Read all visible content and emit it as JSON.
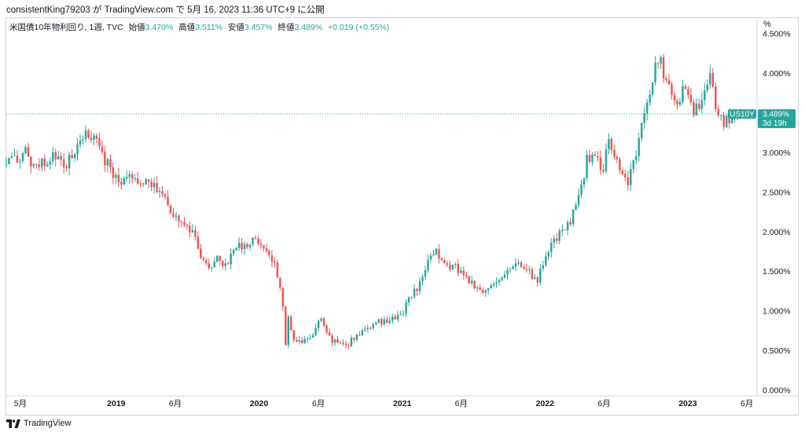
{
  "header": {
    "user": "consistentKing79203",
    "ga": "が",
    "site": "TradingView.com",
    "de": "で",
    "timestamp": "5月 16, 2023 11:36 UTC+9",
    "published": "に公開"
  },
  "legend": {
    "symbol": "米国債10年物利回り, 1週, TVC",
    "open_label": "始値",
    "open_value": "3.470%",
    "high_label": "高値",
    "high_value": "3.511%",
    "low_label": "安値",
    "low_value": "3.457%",
    "close_label": "終値",
    "close_value": "3.489%",
    "change": "+0.019 (+0.55%)"
  },
  "footer": {
    "brand": "TradingView",
    "logo_icon": "tradingview-logo-icon"
  },
  "colors": {
    "up": "#26a69a",
    "down": "#ef5350",
    "price_line": "#26a69a",
    "axis_text": "#131722",
    "border": "#d1d4dc"
  },
  "chart_data": {
    "type": "candlestick",
    "interval": "1 week",
    "y_unit": "%",
    "ylim": [
      -0.05,
      4.7
    ],
    "y_ticks": [
      {
        "value": 4.5,
        "label": "4.500%"
      },
      {
        "value": 4.0,
        "label": "4.000%"
      },
      {
        "value": 3.5,
        "label": "3.500%"
      },
      {
        "value": 3.0,
        "label": "3.000%"
      },
      {
        "value": 2.5,
        "label": "2.500%"
      },
      {
        "value": 2.0,
        "label": "2.000%"
      },
      {
        "value": 1.5,
        "label": "1.500%"
      },
      {
        "value": 1.0,
        "label": "1.000%"
      },
      {
        "value": 0.5,
        "label": "0.500%"
      },
      {
        "value": 0.0,
        "label": "0.000%"
      }
    ],
    "x_range": [
      "2018-03-26",
      "2023-06-25"
    ],
    "x_ticks": [
      {
        "date": "2018-05-01",
        "label": "5月",
        "bold": false
      },
      {
        "date": "2019-01-01",
        "label": "2019",
        "bold": true
      },
      {
        "date": "2019-06-01",
        "label": "6月",
        "bold": false
      },
      {
        "date": "2020-01-01",
        "label": "2020",
        "bold": true
      },
      {
        "date": "2020-06-01",
        "label": "6月",
        "bold": false
      },
      {
        "date": "2021-01-01",
        "label": "2021",
        "bold": true
      },
      {
        "date": "2021-06-01",
        "label": "6月",
        "bold": false
      },
      {
        "date": "2022-01-01",
        "label": "2022",
        "bold": true
      },
      {
        "date": "2022-06-01",
        "label": "6月",
        "bold": false
      },
      {
        "date": "2023-01-01",
        "label": "2023",
        "bold": true
      },
      {
        "date": "2023-06-01",
        "label": "6月",
        "bold": false
      }
    ],
    "last_price": {
      "value": 3.489,
      "label": "3.489%",
      "symbol": "US10Y",
      "countdown": "3d 19h"
    },
    "path": [
      [
        "2018-03-26",
        2.85
      ],
      [
        "2018-04-16",
        2.9
      ],
      [
        "2018-05-07",
        2.98
      ],
      [
        "2018-05-14",
        3.07
      ],
      [
        "2018-05-28",
        2.88
      ],
      [
        "2018-06-25",
        2.85
      ],
      [
        "2018-07-30",
        2.96
      ],
      [
        "2018-08-20",
        2.82
      ],
      [
        "2018-09-24",
        3.05
      ],
      [
        "2018-10-08",
        3.2
      ],
      [
        "2018-11-05",
        3.22
      ],
      [
        "2018-11-26",
        2.98
      ],
      [
        "2018-12-10",
        2.85
      ],
      [
        "2019-01-01",
        2.68
      ],
      [
        "2019-02-11",
        2.65
      ],
      [
        "2019-03-18",
        2.6
      ],
      [
        "2019-04-15",
        2.56
      ],
      [
        "2019-05-13",
        2.35
      ],
      [
        "2019-06-10",
        2.1
      ],
      [
        "2019-07-08",
        2.05
      ],
      [
        "2019-08-05",
        1.7
      ],
      [
        "2019-08-26",
        1.52
      ],
      [
        "2019-09-16",
        1.72
      ],
      [
        "2019-10-07",
        1.55
      ],
      [
        "2019-11-04",
        1.85
      ],
      [
        "2019-12-02",
        1.82
      ],
      [
        "2019-12-23",
        1.9
      ],
      [
        "2020-01-13",
        1.82
      ],
      [
        "2020-02-10",
        1.58
      ],
      [
        "2020-03-02",
        1.08
      ],
      [
        "2020-03-09",
        0.55
      ],
      [
        "2020-03-16",
        0.95
      ],
      [
        "2020-03-30",
        0.62
      ],
      [
        "2020-05-04",
        0.64
      ],
      [
        "2020-06-08",
        0.88
      ],
      [
        "2020-06-29",
        0.66
      ],
      [
        "2020-08-03",
        0.55
      ],
      [
        "2020-09-07",
        0.68
      ],
      [
        "2020-10-19",
        0.84
      ],
      [
        "2020-11-23",
        0.88
      ],
      [
        "2020-12-28",
        0.93
      ],
      [
        "2021-01-11",
        1.1
      ],
      [
        "2021-02-15",
        1.35
      ],
      [
        "2021-03-15",
        1.7
      ],
      [
        "2021-03-29",
        1.74
      ],
      [
        "2021-04-26",
        1.6
      ],
      [
        "2021-06-07",
        1.48
      ],
      [
        "2021-07-19",
        1.25
      ],
      [
        "2021-08-09",
        1.28
      ],
      [
        "2021-09-06",
        1.35
      ],
      [
        "2021-10-04",
        1.57
      ],
      [
        "2021-10-25",
        1.58
      ],
      [
        "2021-11-22",
        1.48
      ],
      [
        "2021-12-13",
        1.4
      ],
      [
        "2022-01-10",
        1.78
      ],
      [
        "2022-02-07",
        1.96
      ],
      [
        "2022-03-07",
        2.1
      ],
      [
        "2022-03-28",
        2.45
      ],
      [
        "2022-04-18",
        2.9
      ],
      [
        "2022-05-09",
        2.95
      ],
      [
        "2022-05-30",
        2.8
      ],
      [
        "2022-06-13",
        3.25
      ],
      [
        "2022-06-27",
        2.9
      ],
      [
        "2022-08-01",
        2.65
      ],
      [
        "2022-08-22",
        3.0
      ],
      [
        "2022-09-19",
        3.7
      ],
      [
        "2022-10-10",
        4.05
      ],
      [
        "2022-10-24",
        4.2
      ],
      [
        "2022-11-07",
        3.85
      ],
      [
        "2022-12-05",
        3.58
      ],
      [
        "2022-12-26",
        3.85
      ],
      [
        "2023-01-16",
        3.5
      ],
      [
        "2023-02-06",
        3.7
      ],
      [
        "2023-02-27",
        3.95
      ],
      [
        "2023-03-13",
        3.55
      ],
      [
        "2023-04-03",
        3.35
      ],
      [
        "2023-04-24",
        3.45
      ],
      [
        "2023-05-08",
        3.46
      ],
      [
        "2023-05-15",
        3.489
      ]
    ]
  }
}
